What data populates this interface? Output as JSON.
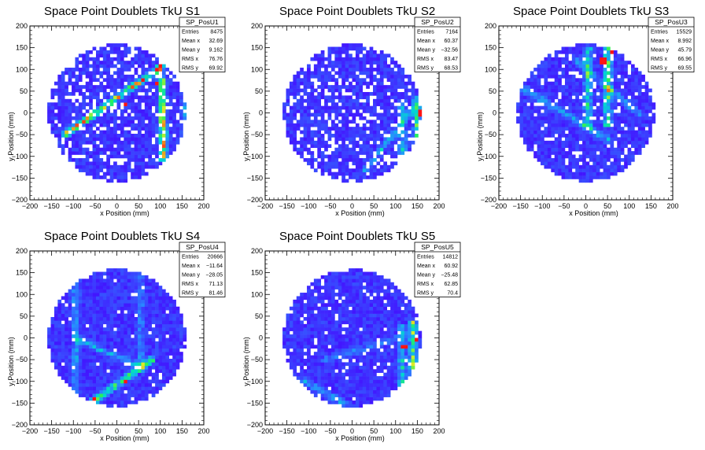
{
  "chart_data": [
    {
      "type": "heatmap",
      "title": "Space Point Doublets TkU S1",
      "xlabel": "x Position (mm)",
      "ylabel": "y Position (mm)",
      "xlim": [
        -200,
        200
      ],
      "ylim": [
        -200,
        200
      ],
      "xticks": [
        "−200",
        "−150",
        "−100",
        "−50",
        "0",
        "50",
        "100",
        "150",
        "200"
      ],
      "yticks": [
        "−200",
        "−150",
        "−100",
        "−50",
        "0",
        "50",
        "100",
        "150",
        "200"
      ],
      "stats": {
        "name": "SP_PosU1",
        "rows": [
          [
            "Entries",
            "8475"
          ],
          [
            "Mean x",
            "32.69"
          ],
          [
            "Mean y",
            "9.162"
          ],
          [
            "RMS x",
            "76.76"
          ],
          [
            "RMS y",
            "69.92"
          ]
        ]
      },
      "pattern": {
        "disk_radius": 160,
        "vertical_bands": [
          {
            "x": 105,
            "y_range": [
              -110,
              80
            ],
            "intensity": 0.45
          },
          {
            "x": 160,
            "y_range": [
              -60,
              80
            ],
            "intensity": 0.3
          }
        ],
        "diagonal_bands": [
          {
            "from": [
              -120,
              -50
            ],
            "to": [
              100,
              105
            ],
            "intensity": 0.75
          },
          {
            "from": [
              100,
              105
            ],
            "to": [
              110,
              -100
            ],
            "intensity": 0.4
          }
        ],
        "hot_spots": [
          [
            20,
            20
          ],
          [
            90,
            70
          ],
          [
            100,
            -75
          ]
        ],
        "empty_fraction": 0.18
      }
    },
    {
      "type": "heatmap",
      "title": "Space Point Doublets TkU S2",
      "xlabel": "x Position (mm)",
      "ylabel": "y Position (mm)",
      "xlim": [
        -200,
        200
      ],
      "ylim": [
        -200,
        200
      ],
      "xticks": [
        "−200",
        "−150",
        "−100",
        "−50",
        "0",
        "50",
        "100",
        "150",
        "200"
      ],
      "yticks": [
        "−200",
        "−150",
        "−100",
        "−50",
        "0",
        "50",
        "100",
        "150",
        "200"
      ],
      "stats": {
        "name": "SP_PosU2",
        "rows": [
          [
            "Entries",
            "7164"
          ],
          [
            "Mean x",
            "60.37"
          ],
          [
            "Mean y",
            "−32.56"
          ],
          [
            "RMS x",
            "83.47"
          ],
          [
            "RMS y",
            "68.53"
          ]
        ]
      },
      "pattern": {
        "disk_radius": 160,
        "vertical_bands": [
          {
            "x": 115,
            "y_range": [
              -100,
              30
            ],
            "intensity": 0.35
          },
          {
            "x": 150,
            "y_range": [
              -80,
              40
            ],
            "intensity": 0.5
          }
        ],
        "diagonal_bands": [
          {
            "from": [
              30,
              -130
            ],
            "to": [
              150,
              20
            ],
            "intensity": 0.3
          }
        ],
        "hot_spots": [
          [
            155,
            0
          ],
          [
            155,
            20
          ]
        ],
        "empty_fraction": 0.22
      }
    },
    {
      "type": "heatmap",
      "title": "Space Point Doublets TkU S3",
      "xlabel": "x Position (mm)",
      "ylabel": "y Position (mm)",
      "xlim": [
        -200,
        200
      ],
      "ylim": [
        -200,
        200
      ],
      "xticks": [
        "−200",
        "−150",
        "−100",
        "−50",
        "0",
        "50",
        "100",
        "150",
        "200"
      ],
      "yticks": [
        "−200",
        "−150",
        "−100",
        "−50",
        "0",
        "50",
        "100",
        "150",
        "200"
      ],
      "stats": {
        "name": "SP_PosU3",
        "rows": [
          [
            "Entries",
            "15529"
          ],
          [
            "Mean x",
            "8.992"
          ],
          [
            "Mean y",
            "45.79"
          ],
          [
            "RMS x",
            "66.96"
          ],
          [
            "RMS y",
            "69.55"
          ]
        ]
      },
      "pattern": {
        "disk_radius": 160,
        "vertical_bands": [
          {
            "x": 5,
            "y_range": [
              -40,
              150
            ],
            "intensity": 0.45
          },
          {
            "x": 50,
            "y_range": [
              -30,
              150
            ],
            "intensity": 0.55
          }
        ],
        "diagonal_bands": [
          {
            "from": [
              -150,
              60
            ],
            "to": [
              50,
              -60
            ],
            "intensity": 0.3
          },
          {
            "from": [
              -20,
              120
            ],
            "to": [
              120,
              0
            ],
            "intensity": 0.3
          }
        ],
        "hot_spots": [
          [
            60,
            140
          ],
          [
            40,
            120
          ]
        ],
        "empty_fraction": 0.1
      }
    },
    {
      "type": "heatmap",
      "title": "Space Point Doublets TkU S4",
      "xlabel": "x Position (mm)",
      "ylabel": "y Position (mm)",
      "xlim": [
        -200,
        200
      ],
      "ylim": [
        -200,
        200
      ],
      "xticks": [
        "−200",
        "−150",
        "−100",
        "−50",
        "0",
        "50",
        "100",
        "150",
        "200"
      ],
      "yticks": [
        "−200",
        "−150",
        "−100",
        "−50",
        "0",
        "50",
        "100",
        "150",
        "200"
      ],
      "stats": {
        "name": "SP_PosU4",
        "rows": [
          [
            "Entries",
            "20666"
          ],
          [
            "Mean x",
            "−11.64"
          ],
          [
            "Mean y",
            "−28.05"
          ],
          [
            "RMS x",
            "71.13"
          ],
          [
            "RMS y",
            "81.46"
          ]
        ]
      },
      "pattern": {
        "disk_radius": 160,
        "vertical_bands": [
          {
            "x": -95,
            "y_range": [
              -140,
              160
            ],
            "intensity": 0.25
          },
          {
            "x": 55,
            "y_range": [
              -60,
              160
            ],
            "intensity": 0.2
          }
        ],
        "diagonal_bands": [
          {
            "from": [
              -60,
              -150
            ],
            "to": [
              80,
              -50
            ],
            "intensity": 0.6
          },
          {
            "from": [
              -95,
              0
            ],
            "to": [
              60,
              -70
            ],
            "intensity": 0.3
          }
        ],
        "hot_spots": [
          [
            -50,
            -140
          ],
          [
            20,
            -100
          ]
        ],
        "empty_fraction": 0.04
      }
    },
    {
      "type": "heatmap",
      "title": "Space Point Doublets TkU S5",
      "xlabel": "x Position (mm)",
      "ylabel": "y Position (mm)",
      "xlim": [
        -200,
        200
      ],
      "ylim": [
        -200,
        200
      ],
      "xticks": [
        "−200",
        "−150",
        "−100",
        "−50",
        "0",
        "50",
        "100",
        "150",
        "200"
      ],
      "yticks": [
        "−200",
        "−150",
        "−100",
        "−50",
        "0",
        "50",
        "100",
        "150",
        "200"
      ],
      "stats": {
        "name": "SP_PosU5",
        "rows": [
          [
            "Entries",
            "14812"
          ],
          [
            "Mean x",
            "60.92"
          ],
          [
            "Mean y",
            "−25.48"
          ],
          [
            "RMS x",
            "62.85"
          ],
          [
            "RMS y",
            "70.4"
          ]
        ]
      },
      "pattern": {
        "disk_radius": 160,
        "vertical_bands": [
          {
            "x": 115,
            "y_range": [
              -120,
              30
            ],
            "intensity": 0.4
          },
          {
            "x": 140,
            "y_range": [
              -100,
              40
            ],
            "intensity": 0.55
          }
        ],
        "diagonal_bands": [
          {
            "from": [
              -110,
              -100
            ],
            "to": [
              -20,
              -150
            ],
            "intensity": 0.3
          },
          {
            "from": [
              -60,
              -50
            ],
            "to": [
              100,
              0
            ],
            "intensity": 0.2
          }
        ],
        "hot_spots": [
          [
            150,
            0
          ],
          [
            120,
            -20
          ]
        ],
        "empty_fraction": 0.07
      }
    }
  ]
}
